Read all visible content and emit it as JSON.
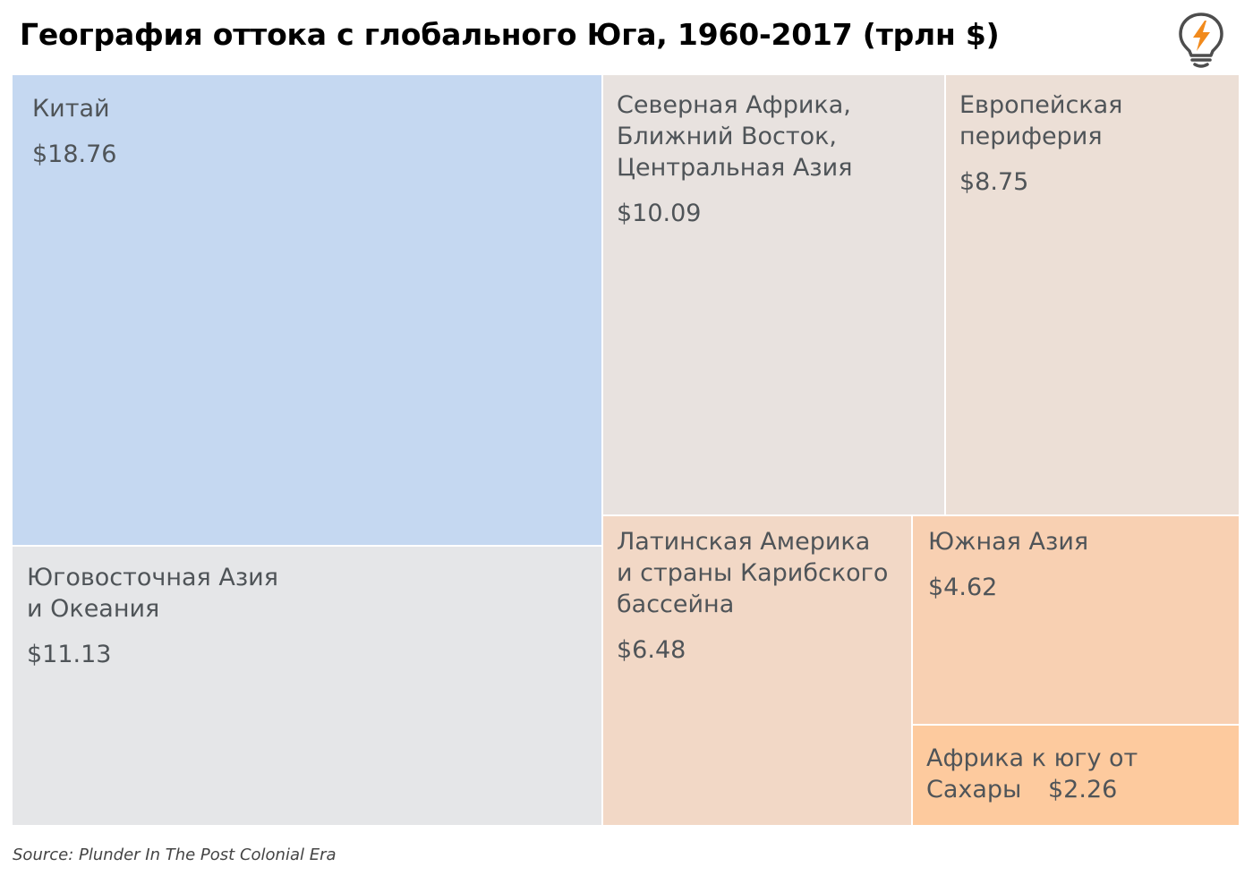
{
  "title": "География оттока с глобального Юга, 1960-2017 (трлн $)",
  "source": "Source: Plunder In The Post Colonial Era",
  "logo_icon": "lightbulb-lightning-icon",
  "chart_data": {
    "type": "treemap",
    "title": "География оттока с глобального Юга, 1960-2017 (трлн $)",
    "unit": "трлн $",
    "items": [
      {
        "name": "Китай",
        "value": 18.76,
        "value_label": "$18.76",
        "color": "#c5d8f1"
      },
      {
        "name": "Юговосточная Азия\nи Океания",
        "value": 11.13,
        "value_label": "$11.13",
        "color": "#e5e6e8"
      },
      {
        "name": "Северная Африка,\nБлижний Восток,\nЦентральная Азия",
        "value": 10.09,
        "value_label": "$10.09",
        "color": "#e8e2df"
      },
      {
        "name": "Европейская\nпериферия",
        "value": 8.75,
        "value_label": "$8.75",
        "color": "#ecdfd6"
      },
      {
        "name": "Латинская Америка\nи страны Карибского\nбассейна",
        "value": 6.48,
        "value_label": "$6.48",
        "color": "#f2d8c6"
      },
      {
        "name": "Южная Азия",
        "value": 4.62,
        "value_label": "$4.62",
        "color": "#f8d0b2"
      },
      {
        "name": "Африка к югу от\nСахары",
        "value": 2.26,
        "value_label": "$2.26",
        "color": "#fdca9e"
      }
    ]
  }
}
